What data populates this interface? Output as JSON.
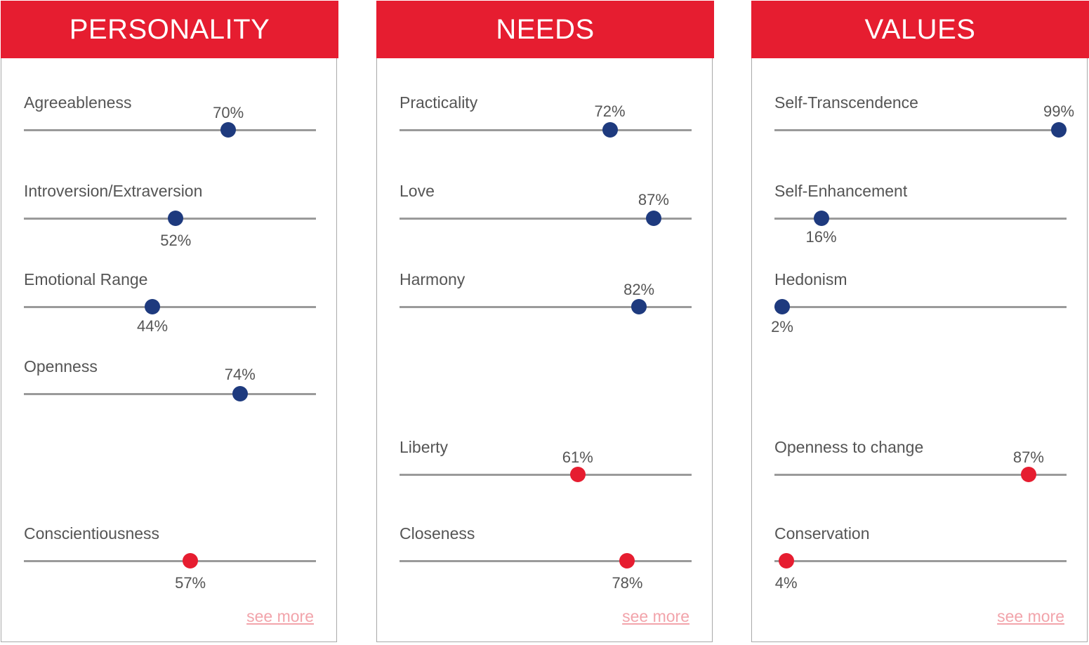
{
  "colors": {
    "accent_red": "#e61d30",
    "dot_blue": "#1e3a7e",
    "dot_red": "#e61d30",
    "track": "#9a9a9a",
    "link": "#f2a4ab"
  },
  "panels": [
    {
      "title": "PERSONALITY",
      "see_more": "see more",
      "traits": [
        {
          "label": "Agreeableness",
          "value": 70,
          "display": "70%",
          "label_position": "above",
          "color": "blue"
        },
        {
          "label": "Introversion/Extraversion",
          "value": 52,
          "display": "52%",
          "label_position": "below",
          "color": "blue"
        },
        {
          "label": "Emotional Range",
          "value": 44,
          "display": "44%",
          "label_position": "below",
          "color": "blue"
        },
        {
          "label": "Openness",
          "value": 74,
          "display": "74%",
          "label_position": "above",
          "color": "blue"
        },
        {
          "label": "Conscientiousness",
          "value": 57,
          "display": "57%",
          "label_position": "below",
          "color": "red"
        }
      ]
    },
    {
      "title": "NEEDS",
      "see_more": "see more",
      "traits": [
        {
          "label": "Practicality",
          "value": 72,
          "display": "72%",
          "label_position": "above",
          "color": "blue"
        },
        {
          "label": "Love",
          "value": 87,
          "display": "87%",
          "label_position": "above",
          "color": "blue"
        },
        {
          "label": "Harmony",
          "value": 82,
          "display": "82%",
          "label_position": "above",
          "color": "blue"
        },
        {
          "label": "Liberty",
          "value": 61,
          "display": "61%",
          "label_position": "above",
          "color": "red"
        },
        {
          "label": "Closeness",
          "value": 78,
          "display": "78%",
          "label_position": "below",
          "color": "red"
        }
      ]
    },
    {
      "title": "VALUES",
      "see_more": "see more",
      "traits": [
        {
          "label": "Self-Transcendence",
          "value": 99,
          "display": "99%",
          "label_position": "above",
          "color": "blue"
        },
        {
          "label": "Self-Enhancement",
          "value": 16,
          "display": "16%",
          "label_position": "below",
          "color": "blue"
        },
        {
          "label": "Hedonism",
          "value": 2,
          "display": "2%",
          "label_position": "below",
          "color": "blue"
        },
        {
          "label": "Openness to change",
          "value": 87,
          "display": "87%",
          "label_position": "above",
          "color": "red"
        },
        {
          "label": "Conservation",
          "value": 4,
          "display": "4%",
          "label_position": "below",
          "color": "red"
        }
      ]
    }
  ]
}
